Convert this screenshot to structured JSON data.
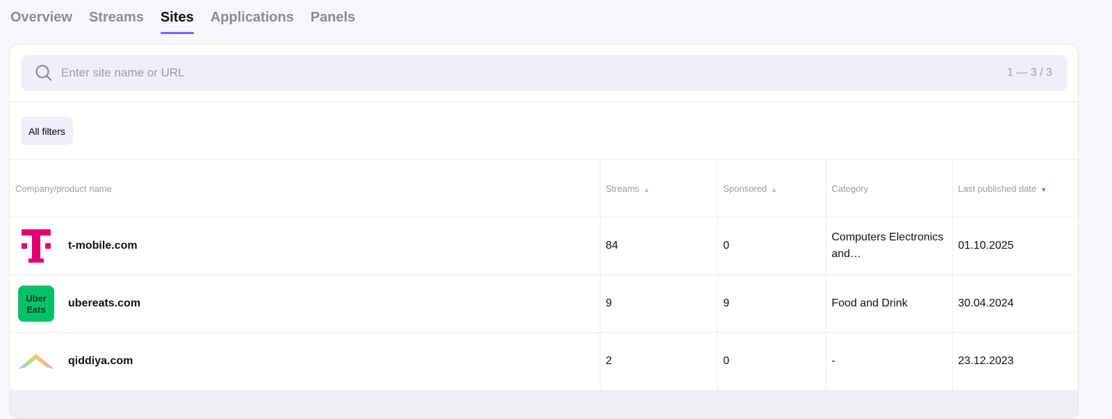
{
  "tabs": [
    {
      "label": "Overview"
    },
    {
      "label": "Streams"
    },
    {
      "label": "Sites",
      "active": true
    },
    {
      "label": "Applications"
    },
    {
      "label": "Panels"
    }
  ],
  "search": {
    "placeholder": "Enter site name or URL",
    "value": "",
    "count": "1 — 3 / 3",
    "icon": "search-icon"
  },
  "filters": {
    "label": "All filters"
  },
  "table": {
    "columns": [
      "Company/product name",
      "Streams",
      "Sponsored",
      "Category",
      "Last published date"
    ],
    "sort": {
      "column": "Last published date",
      "direction": "desc"
    },
    "rows": [
      {
        "name": "t-mobile.com",
        "logo": "t-mobile-logo",
        "streams": "84",
        "sponsored": "0",
        "category": "Computers Electronics and…",
        "date": "01.10.2025"
      },
      {
        "name": "ubereats.com",
        "logo": "ubereats-logo",
        "streams": "9",
        "sponsored": "9",
        "category": "Food and Drink",
        "date": "30.04.2024"
      },
      {
        "name": "qiddiya.com",
        "logo": "qiddiya-logo",
        "streams": "2",
        "sponsored": "0",
        "category": "-",
        "date": "23.12.2023"
      }
    ]
  },
  "colors": {
    "accent": "#6d6af5",
    "tmobile": "#e20074",
    "ubereats": "#06c167"
  }
}
